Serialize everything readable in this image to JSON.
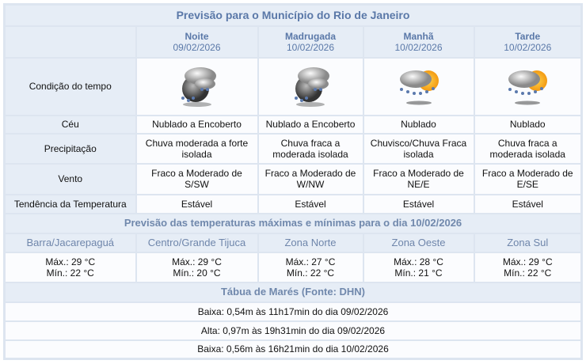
{
  "title": "Previsão para o Município do Rio de Janeiro",
  "periods": [
    {
      "name": "Noite",
      "date": "09/02/2026",
      "icon": "night-cloudy-rain-icon",
      "ceu": "Nublado a Encoberto",
      "precip": "Chuva moderada a forte isolada",
      "vento": "Fraco a Moderado de S/SW",
      "tendencia": "Estável"
    },
    {
      "name": "Madrugada",
      "date": "10/02/2026",
      "icon": "night-cloudy-rain-icon",
      "ceu": "Nublado a Encoberto",
      "precip": "Chuva fraca a moderada isolada",
      "vento": "Fraco a Moderado de W/NW",
      "tendencia": "Estável"
    },
    {
      "name": "Manhã",
      "date": "10/02/2026",
      "icon": "sun-cloud-rain-icon",
      "ceu": "Nublado",
      "precip": "Chuvisco/Chuva Fraca isolada",
      "vento": "Fraco a Moderado de NE/E",
      "tendencia": "Estável"
    },
    {
      "name": "Tarde",
      "date": "10/02/2026",
      "icon": "sun-cloud-rain-icon",
      "ceu": "Nublado",
      "precip": "Chuva fraca a moderada isolada",
      "vento": "Fraco a Moderado de E/SE",
      "tendencia": "Estável"
    }
  ],
  "row_labels": {
    "condicao": "Condição do tempo",
    "ceu": "Céu",
    "precip": "Precipitação",
    "vento": "Vento",
    "tendencia": "Tendência da Temperatura"
  },
  "temp_title": "Previsão das temperaturas máximas e mínimas para o dia 10/02/2026",
  "regions": [
    {
      "name": "Barra/Jacarepaguá",
      "max": "Máx.: 29 °C",
      "min": "Mín.: 22 °C"
    },
    {
      "name": "Centro/Grande Tijuca",
      "max": "Máx.: 29 °C",
      "min": "Mín.: 20 °C"
    },
    {
      "name": "Zona Norte",
      "max": "Máx.: 27 °C",
      "min": "Mín.: 22 °C"
    },
    {
      "name": "Zona Oeste",
      "max": "Máx.: 28 °C",
      "min": "Mín.: 21 °C"
    },
    {
      "name": "Zona Sul",
      "max": "Máx.: 29 °C",
      "min": "Mín.: 22 °C"
    }
  ],
  "tide_title": "Tábua de Marés (Fonte: DHN)",
  "tides": [
    "Baixa: 0,54m às 11h17min do dia 09/02/2026",
    "Alta: 0,97m às 19h31min do dia 09/02/2026",
    "Baixa: 0,56m às 16h21min do dia 10/02/2026"
  ]
}
